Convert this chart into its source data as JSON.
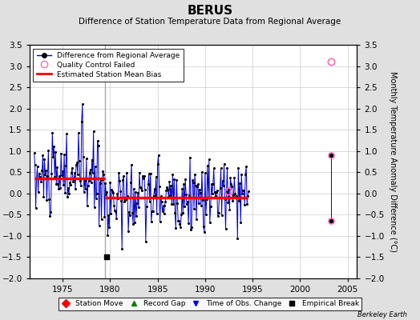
{
  "title": "BERUS",
  "subtitle": "Difference of Station Temperature Data from Regional Average",
  "ylabel": "Monthly Temperature Anomaly Difference (°C)",
  "xlim": [
    1971.5,
    2006.0
  ],
  "ylim": [
    -2.0,
    3.5
  ],
  "yticks": [
    -2,
    -1.5,
    -1,
    -0.5,
    0,
    0.5,
    1,
    1.5,
    2,
    2.5,
    3,
    3.5
  ],
  "xticks": [
    1975,
    1980,
    1985,
    1990,
    1995,
    2000,
    2005
  ],
  "bg_color": "#e0e0e0",
  "plot_bg_color": "#ffffff",
  "segment1_start": 1972.0,
  "segment1_end": 1979.5,
  "segment1_bias": 0.35,
  "segment2_start": 1979.5,
  "segment2_end": 1994.5,
  "segment2_bias": -0.1,
  "empirical_break_x": 1979.6,
  "empirical_break_y": -1.5,
  "qc_top_x": 2003.3,
  "qc_top_y": 3.1,
  "qc_mid_x": 2003.3,
  "qc_mid_y": 0.9,
  "qc_bot_x": 2003.3,
  "qc_bot_y": -0.65,
  "qc_1992_x": 1992.5,
  "qc_1992_y": 0.05,
  "vertical_line_x": 1979.5,
  "line_color": "#0000cc",
  "dot_color": "#000000",
  "bias_color": "#ff0000",
  "qc_color": "#ff69b4",
  "vert_line_color": "#aaaaaa"
}
